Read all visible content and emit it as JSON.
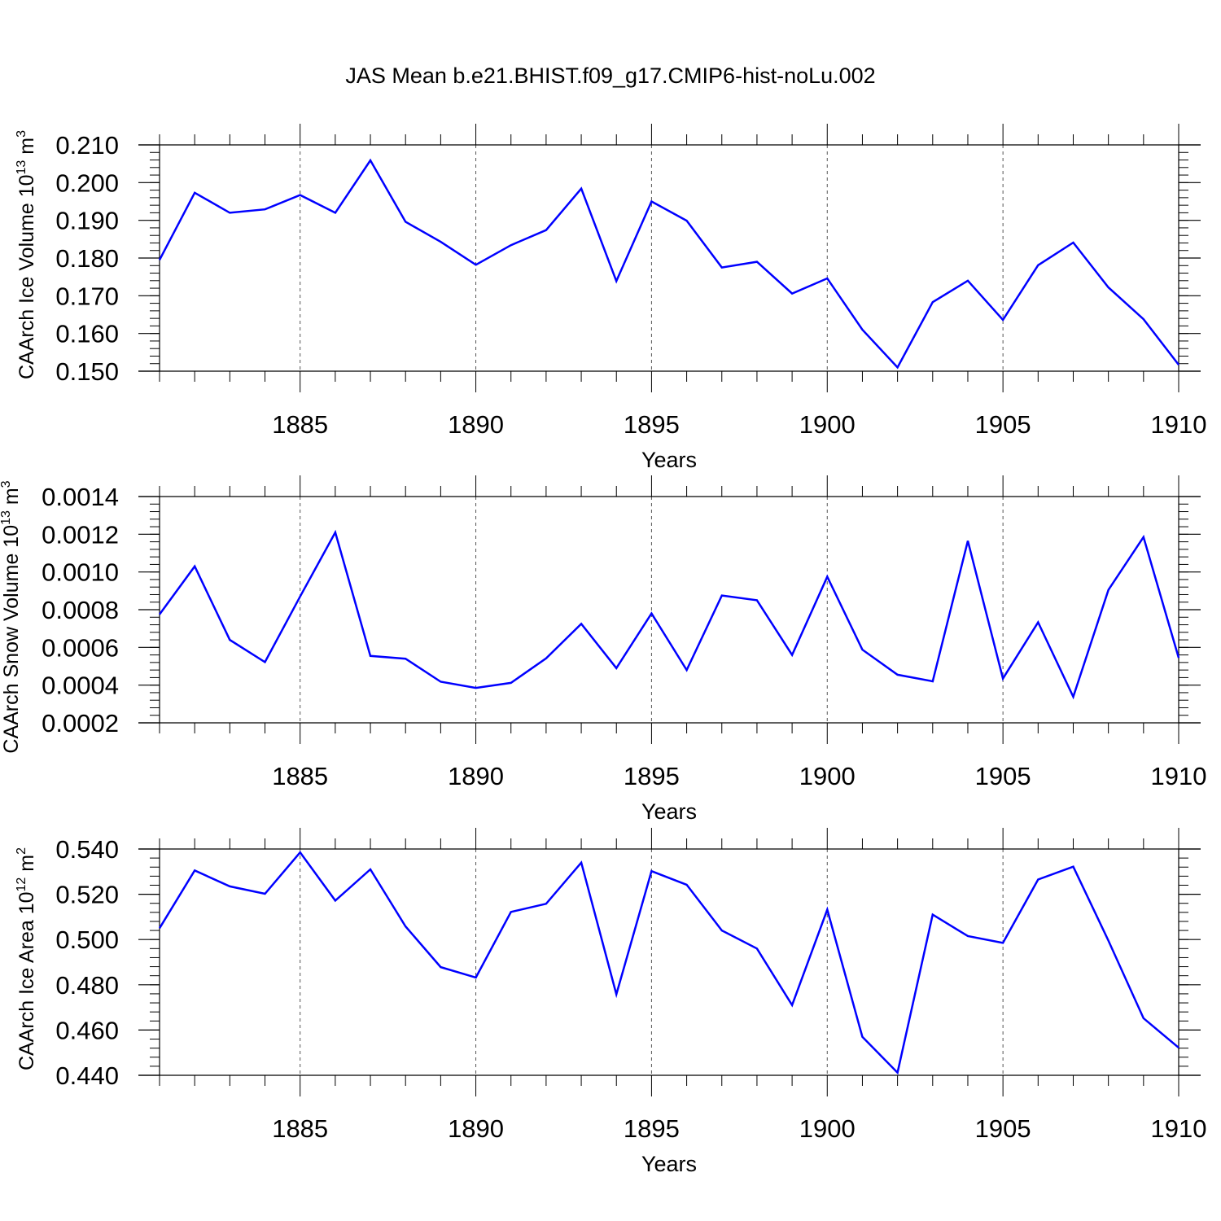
{
  "page_title": "JAS Mean b.e21.BHIST.f09_g17.CMIP6-hist-noLu.002",
  "colors": {
    "series": "#0000ff",
    "axis": "#000000",
    "grid": "#555555"
  },
  "chart_data": [
    {
      "type": "line",
      "ylabel_main": "CAArch Ice Volume 10",
      "ylabel_exp": "13",
      "ylabel_unit": "m",
      "ylabel_unit_exp": "3",
      "xlabel": "Years",
      "xlim": [
        1881,
        1910
      ],
      "ylim": [
        0.15,
        0.21
      ],
      "x_ticks": [
        1885,
        1890,
        1895,
        1900,
        1905,
        1910
      ],
      "y_ticks": [
        "0.150",
        "0.160",
        "0.170",
        "0.180",
        "0.190",
        "0.200",
        "0.210"
      ],
      "y_tick_values": [
        0.15,
        0.16,
        0.17,
        0.18,
        0.19,
        0.2,
        0.21
      ],
      "y_minor_step": 0.002,
      "grid": "vertical dashed at major x ticks",
      "series": [
        {
          "name": "CAArch Ice Volume",
          "x": [
            1881,
            1882,
            1883,
            1884,
            1885,
            1886,
            1887,
            1888,
            1889,
            1890,
            1891,
            1892,
            1893,
            1894,
            1895,
            1896,
            1897,
            1898,
            1899,
            1900,
            1901,
            1902,
            1903,
            1904,
            1905,
            1906,
            1907,
            1908,
            1909,
            1910
          ],
          "values": [
            0.1795,
            0.1973,
            0.192,
            0.1929,
            0.1967,
            0.192,
            0.2059,
            0.1896,
            0.1843,
            0.1782,
            0.1834,
            0.1874,
            0.1984,
            0.1739,
            0.195,
            0.1899,
            0.1775,
            0.179,
            0.1706,
            0.1746,
            0.161,
            0.151,
            0.1683,
            0.174,
            0.1636,
            0.1781,
            0.1841,
            0.1722,
            0.1638,
            0.1517
          ]
        }
      ]
    },
    {
      "type": "line",
      "ylabel_main": "CAArch Snow Volume 10",
      "ylabel_exp": "13",
      "ylabel_unit": "m",
      "ylabel_unit_exp": "3",
      "xlabel": "Years",
      "xlim": [
        1881,
        1910
      ],
      "ylim": [
        0.0002,
        0.0014
      ],
      "x_ticks": [
        1885,
        1890,
        1895,
        1900,
        1905,
        1910
      ],
      "y_ticks": [
        "0.0002",
        "0.0004",
        "0.0006",
        "0.0008",
        "0.0010",
        "0.0012",
        "0.0014"
      ],
      "y_tick_values": [
        0.0002,
        0.0004,
        0.0006,
        0.0008,
        0.001,
        0.0012,
        0.0014
      ],
      "y_minor_step": 4e-05,
      "grid": "vertical dashed at major x ticks",
      "series": [
        {
          "name": "CAArch Snow Volume",
          "x": [
            1881,
            1882,
            1883,
            1884,
            1885,
            1886,
            1887,
            1888,
            1889,
            1890,
            1891,
            1892,
            1893,
            1894,
            1895,
            1896,
            1897,
            1898,
            1899,
            1900,
            1901,
            1902,
            1903,
            1904,
            1905,
            1906,
            1907,
            1908,
            1909,
            1910
          ],
          "values": [
            0.000775,
            0.00103,
            0.00064,
            0.000522,
            0.00087,
            0.00121,
            0.000555,
            0.00054,
            0.000418,
            0.000385,
            0.000412,
            0.000542,
            0.000725,
            0.00049,
            0.00078,
            0.00048,
            0.000875,
            0.00085,
            0.00056,
            0.000975,
            0.000588,
            0.000455,
            0.00042,
            0.001165,
            0.000435,
            0.000733,
            0.000338,
            0.000905,
            0.001185,
            0.000545
          ]
        }
      ]
    },
    {
      "type": "line",
      "ylabel_main": "CAArch Ice Area 10",
      "ylabel_exp": "12",
      "ylabel_unit": "m",
      "ylabel_unit_exp": "2",
      "xlabel": "Years",
      "xlim": [
        1881,
        1910
      ],
      "ylim": [
        0.44,
        0.54
      ],
      "x_ticks": [
        1885,
        1890,
        1895,
        1900,
        1905,
        1910
      ],
      "y_ticks": [
        "0.440",
        "0.460",
        "0.480",
        "0.500",
        "0.520",
        "0.540"
      ],
      "y_tick_values": [
        0.44,
        0.46,
        0.48,
        0.5,
        0.52,
        0.54
      ],
      "y_minor_step": 0.004,
      "grid": "vertical dashed at major x ticks",
      "series": [
        {
          "name": "CAArch Ice Area",
          "x": [
            1881,
            1882,
            1883,
            1884,
            1885,
            1886,
            1887,
            1888,
            1889,
            1890,
            1891,
            1892,
            1893,
            1894,
            1895,
            1896,
            1897,
            1898,
            1899,
            1900,
            1901,
            1902,
            1903,
            1904,
            1905,
            1906,
            1907,
            1908,
            1909,
            1910
          ],
          "values": [
            0.505,
            0.5305,
            0.5235,
            0.5202,
            0.5385,
            0.5172,
            0.531,
            0.5058,
            0.4878,
            0.4832,
            0.5122,
            0.5158,
            0.534,
            0.4758,
            0.5302,
            0.5242,
            0.504,
            0.496,
            0.471,
            0.5132,
            0.457,
            0.4412,
            0.511,
            0.5015,
            0.4985,
            0.5265,
            0.5322,
            0.4995,
            0.4652,
            0.4522
          ]
        }
      ]
    }
  ]
}
